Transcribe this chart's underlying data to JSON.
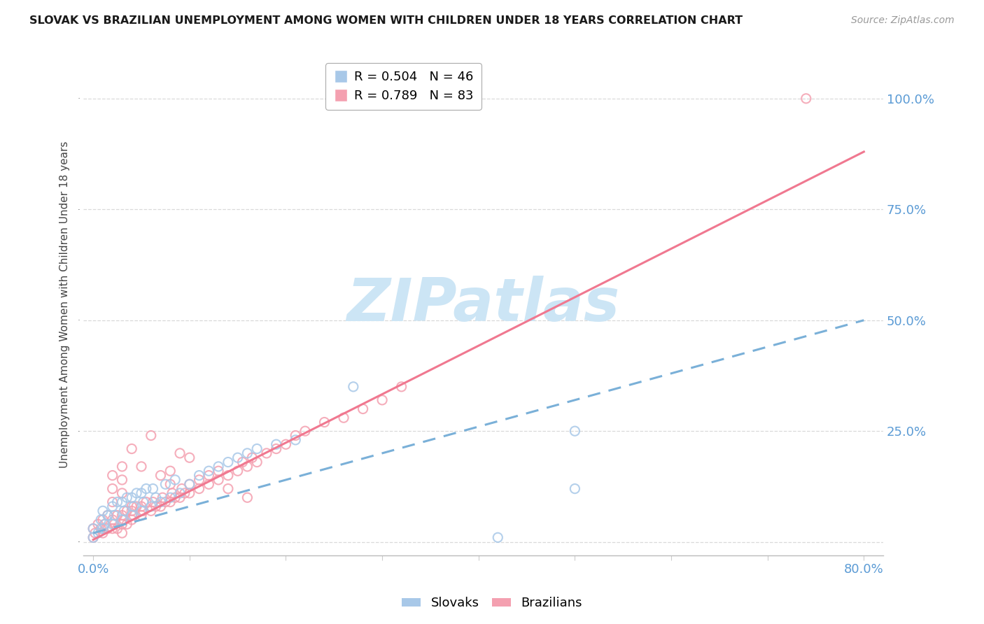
{
  "title": "SLOVAK VS BRAZILIAN UNEMPLOYMENT AMONG WOMEN WITH CHILDREN UNDER 18 YEARS CORRELATION CHART",
  "source": "Source: ZipAtlas.com",
  "ylabel": "Unemployment Among Women with Children Under 18 years",
  "xlim": [
    -0.01,
    0.82
  ],
  "ylim": [
    -0.03,
    1.1
  ],
  "slovak_R": 0.504,
  "slovak_N": 46,
  "brazilian_R": 0.789,
  "brazilian_N": 83,
  "background_color": "#ffffff",
  "grid_color": "#d0d0d0",
  "slovak_color": "#a8c8e8",
  "brazilian_color": "#f4a0b0",
  "slovak_line_color": "#7ab0d8",
  "brazilian_line_color": "#f07890",
  "watermark_text": "ZIPatlas",
  "watermark_color": "#cce5f5",
  "legend_slovak_label": "Slovaks",
  "legend_brazilian_label": "Brazilians",
  "xtick_positions": [
    0.0,
    0.1,
    0.2,
    0.3,
    0.4,
    0.5,
    0.6,
    0.7,
    0.8
  ],
  "xtick_labels": [
    "0.0%",
    "",
    "",
    "",
    "",
    "",
    "",
    "",
    "80.0%"
  ],
  "ytick_positions": [
    0.0,
    0.25,
    0.5,
    0.75,
    1.0
  ],
  "ytick_labels": [
    "",
    "25.0%",
    "50.0%",
    "75.0%",
    "100.0%"
  ],
  "slovak_line_x": [
    0.0,
    0.8
  ],
  "slovak_line_y": [
    0.02,
    0.5
  ],
  "brazilian_line_x": [
    0.0,
    0.8
  ],
  "brazilian_line_y": [
    0.005,
    0.88
  ],
  "slovak_scatter_x": [
    0.0,
    0.0,
    0.005,
    0.008,
    0.01,
    0.01,
    0.012,
    0.015,
    0.02,
    0.02,
    0.022,
    0.025,
    0.03,
    0.03,
    0.032,
    0.035,
    0.04,
    0.04,
    0.042,
    0.045,
    0.05,
    0.05,
    0.052,
    0.055,
    0.06,
    0.062,
    0.065,
    0.07,
    0.075,
    0.08,
    0.085,
    0.09,
    0.1,
    0.11,
    0.12,
    0.13,
    0.14,
    0.15,
    0.16,
    0.17,
    0.19,
    0.21,
    0.27,
    0.42,
    0.5,
    0.5
  ],
  "slovak_scatter_y": [
    0.01,
    0.03,
    0.02,
    0.05,
    0.03,
    0.07,
    0.04,
    0.06,
    0.04,
    0.08,
    0.06,
    0.09,
    0.05,
    0.09,
    0.07,
    0.1,
    0.06,
    0.1,
    0.08,
    0.11,
    0.07,
    0.11,
    0.09,
    0.12,
    0.08,
    0.12,
    0.1,
    0.09,
    0.13,
    0.1,
    0.14,
    0.11,
    0.13,
    0.15,
    0.16,
    0.17,
    0.18,
    0.19,
    0.2,
    0.21,
    0.22,
    0.23,
    0.35,
    0.01,
    0.12,
    0.25
  ],
  "brazilian_scatter_x": [
    0.0,
    0.0,
    0.002,
    0.005,
    0.008,
    0.01,
    0.01,
    0.012,
    0.015,
    0.015,
    0.02,
    0.02,
    0.022,
    0.025,
    0.025,
    0.03,
    0.03,
    0.032,
    0.035,
    0.035,
    0.04,
    0.04,
    0.042,
    0.045,
    0.05,
    0.05,
    0.052,
    0.055,
    0.06,
    0.062,
    0.065,
    0.07,
    0.072,
    0.075,
    0.08,
    0.082,
    0.085,
    0.09,
    0.092,
    0.095,
    0.1,
    0.1,
    0.11,
    0.11,
    0.12,
    0.12,
    0.13,
    0.13,
    0.14,
    0.15,
    0.155,
    0.16,
    0.165,
    0.17,
    0.18,
    0.19,
    0.2,
    0.21,
    0.22,
    0.24,
    0.26,
    0.28,
    0.3,
    0.32,
    0.14,
    0.16,
    0.06,
    0.09,
    0.05,
    0.07,
    0.08,
    0.08,
    0.1,
    0.04,
    0.03,
    0.02,
    0.02,
    0.02,
    0.03,
    0.03,
    0.04,
    0.74,
    0.03
  ],
  "brazilian_scatter_y": [
    0.01,
    0.03,
    0.02,
    0.04,
    0.03,
    0.02,
    0.05,
    0.04,
    0.03,
    0.06,
    0.03,
    0.05,
    0.04,
    0.03,
    0.06,
    0.04,
    0.06,
    0.05,
    0.04,
    0.07,
    0.05,
    0.07,
    0.06,
    0.08,
    0.06,
    0.08,
    0.07,
    0.09,
    0.07,
    0.09,
    0.08,
    0.08,
    0.1,
    0.09,
    0.09,
    0.11,
    0.1,
    0.1,
    0.12,
    0.11,
    0.11,
    0.13,
    0.12,
    0.14,
    0.13,
    0.15,
    0.14,
    0.16,
    0.15,
    0.16,
    0.18,
    0.17,
    0.19,
    0.18,
    0.2,
    0.21,
    0.22,
    0.24,
    0.25,
    0.27,
    0.28,
    0.3,
    0.32,
    0.35,
    0.12,
    0.1,
    0.24,
    0.2,
    0.17,
    0.15,
    0.13,
    0.16,
    0.19,
    0.21,
    0.14,
    0.12,
    0.09,
    0.15,
    0.17,
    0.11,
    0.08,
    1.0,
    0.02
  ]
}
